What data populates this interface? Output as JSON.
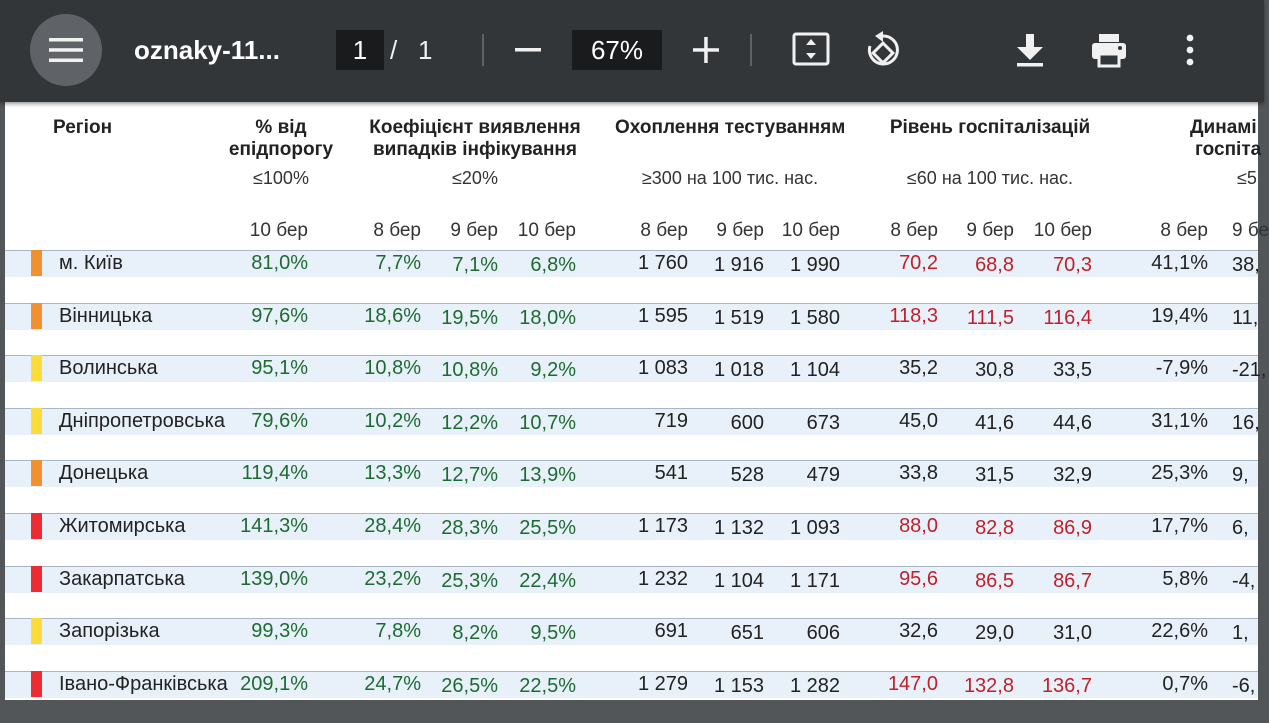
{
  "toolbar": {
    "title": "oznaky-11...",
    "page_current": "1",
    "page_separator": "/",
    "page_total": "1",
    "zoom": "67%"
  },
  "colors": {
    "toolbar_bg": "#323639",
    "viewer_bg": "#525659",
    "green_value": "#1d6b31",
    "red_value": "#c0202a",
    "marker_orange": "#f0902f",
    "marker_yellow": "#fbdc3a",
    "marker_red": "#ec2b33"
  },
  "icons": {
    "menu": "hamburger-icon",
    "zoom_out": "minus-icon",
    "zoom_in": "plus-icon",
    "fit": "fit-to-page-icon",
    "rotate": "rotate-icon",
    "download": "download-icon",
    "print": "print-icon",
    "more": "more-vert-icon"
  },
  "table": {
    "headers": {
      "region": "Регіон",
      "epi_line1": "% від",
      "epi_line2": "епідпорогу",
      "epi_threshold": "≤100%",
      "coef_line1": "Коефіцієнт виявлення",
      "coef_line2": "випадків інфікування",
      "coef_threshold": "≤20%",
      "test_line1": "Охоплення тестуванням",
      "test_threshold": "≥300 на 100 тис. нас.",
      "hosp_line1": "Рівень госпіталізацій",
      "hosp_threshold": "≤60 на 100 тис. нас.",
      "dyn_line1": "Динамі",
      "dyn_line2": "госпіта",
      "dyn_threshold": "≤5"
    },
    "periods": {
      "epi_10": "10 бер",
      "coef_8": "8 бер",
      "coef_9": "9 бер",
      "coef_10": "10 бер",
      "test_8": "8 бер",
      "test_9": "9 бер",
      "test_10": "10 бер",
      "hosp_8": "8 бер",
      "hosp_9": "9 бер",
      "hosp_10": "10 бер",
      "dyn_8": "8 бер",
      "dyn_9": "9 бе"
    },
    "rows": [
      {
        "marker": "#f0902f",
        "region": "м. Київ",
        "epi": "81,0%",
        "coef8": "7,7%",
        "coef9": "7,1%",
        "coef10": "6,8%",
        "test8": "1 760",
        "test9": "1 916",
        "test10": "1 990",
        "hosp8": "70,2",
        "hosp9": "68,8",
        "hosp10": "70,3",
        "hosp_red": true,
        "dyn8": "41,1%",
        "dyn9": "38,"
      },
      {
        "marker": "#f0902f",
        "region": "Вінницька",
        "epi": "97,6%",
        "coef8": "18,6%",
        "coef9": "19,5%",
        "coef10": "18,0%",
        "test8": "1 595",
        "test9": "1 519",
        "test10": "1 580",
        "hosp8": "118,3",
        "hosp9": "111,5",
        "hosp10": "116,4",
        "hosp_red": true,
        "dyn8": "19,4%",
        "dyn9": "11,"
      },
      {
        "marker": "#fbdc3a",
        "region": "Волинська",
        "epi": "95,1%",
        "coef8": "10,8%",
        "coef9": "10,8%",
        "coef10": "9,2%",
        "test8": "1 083",
        "test9": "1 018",
        "test10": "1 104",
        "hosp8": "35,2",
        "hosp9": "30,8",
        "hosp10": "33,5",
        "hosp_red": false,
        "dyn8": "-7,9%",
        "dyn9": "-21,"
      },
      {
        "marker": "#fbdc3a",
        "region": "Дніпропетровська",
        "epi": "79,6%",
        "coef8": "10,2%",
        "coef9": "12,2%",
        "coef10": "10,7%",
        "test8": "719",
        "test9": "600",
        "test10": "673",
        "hosp8": "45,0",
        "hosp9": "41,6",
        "hosp10": "44,6",
        "hosp_red": false,
        "dyn8": "31,1%",
        "dyn9": "16,"
      },
      {
        "marker": "#f0902f",
        "region": "Донецька",
        "epi": "119,4%",
        "coef8": "13,3%",
        "coef9": "12,7%",
        "coef10": "13,9%",
        "test8": "541",
        "test9": "528",
        "test10": "479",
        "hosp8": "33,8",
        "hosp9": "31,5",
        "hosp10": "32,9",
        "hosp_red": false,
        "dyn8": "25,3%",
        "dyn9": "9,"
      },
      {
        "marker": "#ec2b33",
        "region": "Житомирська",
        "epi": "141,3%",
        "coef8": "28,4%",
        "coef9": "28,3%",
        "coef10": "25,5%",
        "test8": "1 173",
        "test9": "1 132",
        "test10": "1 093",
        "hosp8": "88,0",
        "hosp9": "82,8",
        "hosp10": "86,9",
        "hosp_red": true,
        "dyn8": "17,7%",
        "dyn9": "6,"
      },
      {
        "marker": "#ec2b33",
        "region": "Закарпатська",
        "epi": "139,0%",
        "coef8": "23,2%",
        "coef9": "25,3%",
        "coef10": "22,4%",
        "test8": "1 232",
        "test9": "1 104",
        "test10": "1 171",
        "hosp8": "95,6",
        "hosp9": "86,5",
        "hosp10": "86,7",
        "hosp_red": true,
        "dyn8": "5,8%",
        "dyn9": "-4,"
      },
      {
        "marker": "#fbdc3a",
        "region": "Запорізька",
        "epi": "99,3%",
        "coef8": "7,8%",
        "coef9": "8,2%",
        "coef10": "9,5%",
        "test8": "691",
        "test9": "651",
        "test10": "606",
        "hosp8": "32,6",
        "hosp9": "29,0",
        "hosp10": "31,0",
        "hosp_red": false,
        "dyn8": "22,6%",
        "dyn9": "1,"
      },
      {
        "marker": "#ec2b33",
        "region": "Івано-Франківська",
        "epi": "209,1%",
        "coef8": "24,7%",
        "coef9": "26,5%",
        "coef10": "22,5%",
        "test8": "1 279",
        "test9": "1 153",
        "test10": "1 282",
        "hosp8": "147,0",
        "hosp9": "132,8",
        "hosp10": "136,7",
        "hosp_red": true,
        "dyn8": "0,7%",
        "dyn9": "-6,"
      }
    ]
  }
}
